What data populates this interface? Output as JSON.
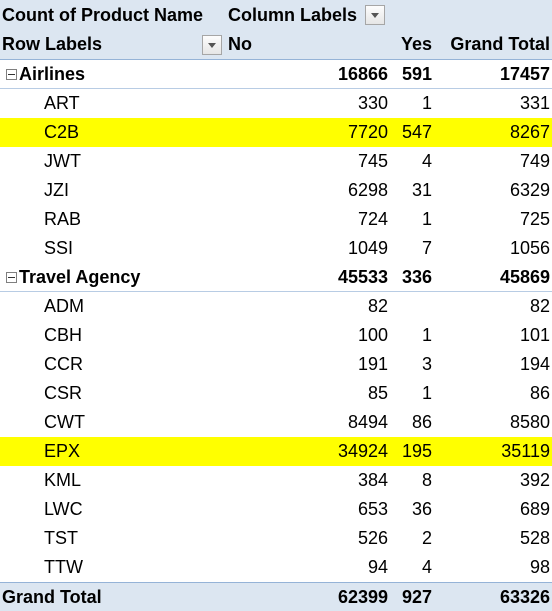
{
  "header": {
    "measure": "Count of Product Name",
    "column_labels": "Column Labels",
    "row_labels": "Row Labels",
    "col_no": "No",
    "col_yes": "Yes",
    "col_grand_total": "Grand Total"
  },
  "groups": [
    {
      "label": "Airlines",
      "no": "16866",
      "yes": "591",
      "total": "17457",
      "items": [
        {
          "label": "ART",
          "no": "330",
          "yes": "1",
          "total": "331",
          "highlight": false
        },
        {
          "label": "C2B",
          "no": "7720",
          "yes": "547",
          "total": "8267",
          "highlight": true
        },
        {
          "label": "JWT",
          "no": "745",
          "yes": "4",
          "total": "749",
          "highlight": false
        },
        {
          "label": "JZI",
          "no": "6298",
          "yes": "31",
          "total": "6329",
          "highlight": false
        },
        {
          "label": "RAB",
          "no": "724",
          "yes": "1",
          "total": "725",
          "highlight": false
        },
        {
          "label": "SSI",
          "no": "1049",
          "yes": "7",
          "total": "1056",
          "highlight": false
        }
      ]
    },
    {
      "label": "Travel Agency",
      "no": "45533",
      "yes": "336",
      "total": "45869",
      "items": [
        {
          "label": "ADM",
          "no": "82",
          "yes": "",
          "total": "82",
          "highlight": false
        },
        {
          "label": "CBH",
          "no": "100",
          "yes": "1",
          "total": "101",
          "highlight": false
        },
        {
          "label": "CCR",
          "no": "191",
          "yes": "3",
          "total": "194",
          "highlight": false
        },
        {
          "label": "CSR",
          "no": "85",
          "yes": "1",
          "total": "86",
          "highlight": false
        },
        {
          "label": "CWT",
          "no": "8494",
          "yes": "86",
          "total": "8580",
          "highlight": false
        },
        {
          "label": "EPX",
          "no": "34924",
          "yes": "195",
          "total": "35119",
          "highlight": true
        },
        {
          "label": "KML",
          "no": "384",
          "yes": "8",
          "total": "392",
          "highlight": false
        },
        {
          "label": "LWC",
          "no": "653",
          "yes": "36",
          "total": "689",
          "highlight": false
        },
        {
          "label": "TST",
          "no": "526",
          "yes": "2",
          "total": "528",
          "highlight": false
        },
        {
          "label": "TTW",
          "no": "94",
          "yes": "4",
          "total": "98",
          "highlight": false
        }
      ]
    }
  ],
  "grand_total": {
    "label": "Grand Total",
    "no": "62399",
    "yes": "927",
    "total": "63326"
  },
  "colors": {
    "header_bg": "#dce6f1",
    "highlight": "#ffff00",
    "border": "#95b3d7"
  }
}
